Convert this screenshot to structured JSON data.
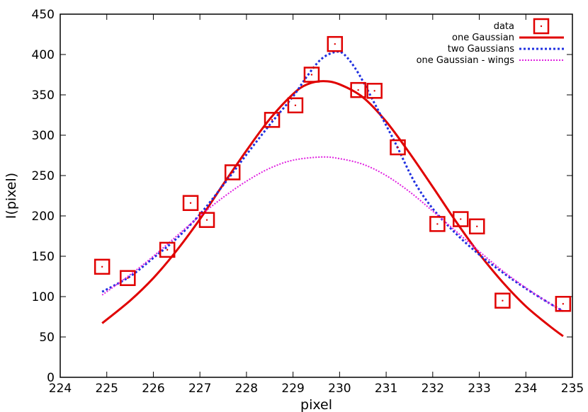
{
  "chart_data": {
    "type": "scatter",
    "title": "",
    "xlabel": "pixel",
    "ylabel": "I(pixel)",
    "xlim": [
      224,
      235
    ],
    "ylim": [
      0,
      450
    ],
    "x_ticks": [
      "224",
      "225",
      "226",
      "227",
      "228",
      "229",
      "230",
      "231",
      "232",
      "233",
      "234",
      "235"
    ],
    "y_ticks": [
      "0",
      "50",
      "100",
      "150",
      "200",
      "250",
      "300",
      "350",
      "400",
      "450"
    ],
    "grid": false,
    "legend_position": "top-right",
    "series": [
      {
        "name": "data",
        "kind": "points",
        "color": "#e00000",
        "marker": "open-square-with-dot",
        "x": [
          224.9,
          225.45,
          226.3,
          226.8,
          227.15,
          227.7,
          228.55,
          229.05,
          229.4,
          229.9,
          230.4,
          230.75,
          231.25,
          232.1,
          232.6,
          232.95,
          233.5,
          234.8
        ],
        "y": [
          137,
          123,
          158,
          216,
          195,
          254,
          319,
          337,
          375,
          413,
          356,
          355,
          285,
          190,
          196,
          187,
          95,
          91
        ]
      },
      {
        "name": "one Gaussian",
        "kind": "curve",
        "color": "#e00000",
        "dash": "solid",
        "x": [
          224.9,
          225.5,
          226.0,
          226.5,
          227.0,
          227.5,
          228.0,
          228.5,
          229.0,
          229.3,
          229.65,
          230.0,
          230.5,
          231.0,
          231.5,
          232.0,
          232.5,
          233.0,
          233.5,
          234.0,
          234.5,
          234.8
        ],
        "y": [
          67,
          95,
          123,
          157,
          196,
          239,
          281,
          320,
          351,
          363,
          367,
          363,
          347,
          317,
          278,
          236,
          193,
          153,
          118,
          88,
          64,
          51
        ]
      },
      {
        "name": "two Gaussians",
        "kind": "curve",
        "color": "#2030e0",
        "dash": "dotted",
        "x": [
          224.9,
          225.5,
          226.0,
          226.5,
          227.0,
          227.5,
          228.0,
          228.5,
          229.0,
          229.3,
          229.6,
          229.9,
          230.1,
          230.4,
          230.8,
          231.2,
          231.6,
          232.0,
          232.5,
          233.0,
          233.5,
          234.0,
          234.5,
          234.8
        ],
        "y": [
          106,
          125,
          148,
          172,
          202,
          238,
          276,
          313,
          348,
          373,
          394,
          403,
          400,
          377,
          334,
          290,
          243,
          209,
          178,
          152,
          130,
          110,
          92,
          82
        ]
      },
      {
        "name": "one Gaussian - wings",
        "kind": "curve",
        "color": "#e020e0",
        "dash": "dotted",
        "x": [
          224.9,
          225.5,
          226.0,
          226.5,
          227.0,
          227.5,
          228.0,
          228.5,
          229.0,
          229.6,
          230.0,
          230.5,
          231.0,
          231.5,
          232.0,
          232.5,
          233.0,
          233.5,
          234.0,
          234.5,
          234.8
        ],
        "y": [
          102,
          127,
          150,
          175,
          200,
          223,
          243,
          259,
          269,
          273,
          271,
          264,
          250,
          230,
          206,
          181,
          156,
          132,
          111,
          92,
          82
        ]
      }
    ]
  }
}
